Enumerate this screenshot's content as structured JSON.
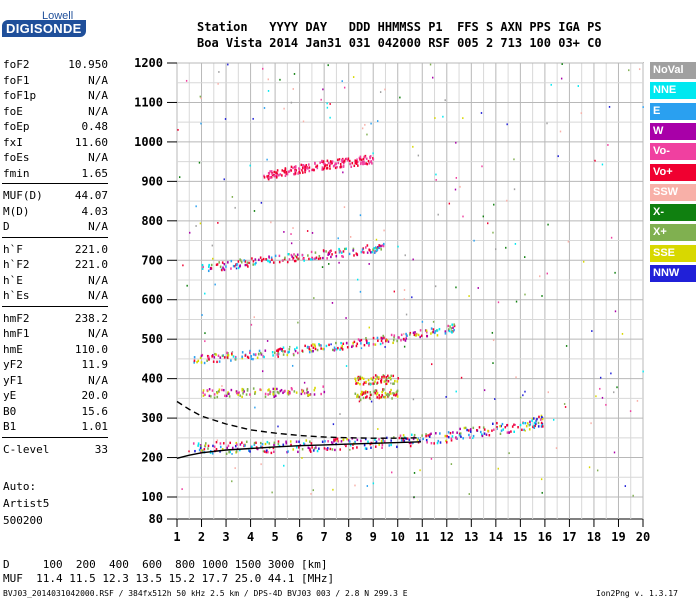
{
  "logo": {
    "top": "Lowell",
    "main": "DIGISONDE"
  },
  "header": {
    "line1": "Station   YYYY DAY   DDD HHMMSS P1  FFS S AXN PPS IGA PS",
    "line2": "Boa Vista 2014 Jan31 031 042000 RSF 005 2 713 100 03+ C0"
  },
  "parameters": [
    [
      {
        "label": "foF2",
        "value": "10.950"
      },
      {
        "label": "foF1",
        "value": "N/A"
      },
      {
        "label": "foF1p",
        "value": "N/A"
      },
      {
        "label": "foE",
        "value": "N/A"
      },
      {
        "label": "foEp",
        "value": "0.48"
      },
      {
        "label": "fxI",
        "value": "11.60"
      },
      {
        "label": "foEs",
        "value": "N/A"
      },
      {
        "label": "fmin",
        "value": "1.65"
      }
    ],
    [
      {
        "label": "MUF(D)",
        "value": "44.07"
      },
      {
        "label": "M(D)",
        "value": "4.03"
      },
      {
        "label": "D",
        "value": "N/A"
      }
    ],
    [
      {
        "label": "h`F",
        "value": "221.0"
      },
      {
        "label": "h`F2",
        "value": "221.0"
      },
      {
        "label": "h`E",
        "value": "N/A"
      },
      {
        "label": "h`Es",
        "value": "N/A"
      }
    ],
    [
      {
        "label": "hmF2",
        "value": "238.2"
      },
      {
        "label": "hmF1",
        "value": "N/A"
      },
      {
        "label": "hmE",
        "value": "110.0"
      },
      {
        "label": "yF2",
        "value": "11.9"
      },
      {
        "label": "yF1",
        "value": "N/A"
      },
      {
        "label": "yE",
        "value": "20.0"
      },
      {
        "label": "B0",
        "value": "15.6"
      },
      {
        "label": "B1",
        "value": "1.01"
      }
    ],
    [
      {
        "label": "C-level",
        "value": "33"
      }
    ]
  ],
  "extra_text": [
    "Auto:",
    "Artist5",
    "500200"
  ],
  "legend": [
    {
      "label": "NoVal",
      "color": "#a0a0a0",
      "text_color": "#ffffff"
    },
    {
      "label": "NNE",
      "color": "#00e8f0",
      "text_color": "#ffffff"
    },
    {
      "label": "E",
      "color": "#2aa0f0",
      "text_color": "#ffffff"
    },
    {
      "label": "W",
      "color": "#a800a8",
      "text_color": "#ffffff"
    },
    {
      "label": "Vo-",
      "color": "#f040a0",
      "text_color": "#ffffff"
    },
    {
      "label": "Vo+",
      "color": "#f00030",
      "text_color": "#ffffff"
    },
    {
      "label": "SSW",
      "color": "#f8b0a8",
      "text_color": "#ffffff"
    },
    {
      "label": "X-",
      "color": "#108010",
      "text_color": "#ffffff"
    },
    {
      "label": "X+",
      "color": "#80b050",
      "text_color": "#ffffff"
    },
    {
      "label": "SSE",
      "color": "#d8d800",
      "text_color": "#ffffff"
    },
    {
      "label": "NNW",
      "color": "#2020d8",
      "text_color": "#ffffff"
    }
  ],
  "footer": {
    "d_row": "D     100  200  400  600  800 1000 1500 3000 [km]",
    "muf_row": "MUF  11.4 11.5 12.3 13.5 15.2 17.7 25.0 44.1 [MHz]",
    "file_line": "BVJ03_2014031042000.RSF / 384fx512h 50 kHz 2.5 km / DPS-4D BVJ03 003 / 2.8 N 299.3 E",
    "version": "Ion2Png v. 1.3.17"
  },
  "chart_data": {
    "type": "scatter",
    "xlabel": "",
    "ylabel": "",
    "xlim": [
      1,
      20
    ],
    "ylim": [
      80,
      1200
    ],
    "x_ticks": [
      1,
      2,
      3,
      4,
      5,
      6,
      7,
      8,
      9,
      10,
      11,
      12,
      13,
      14,
      15,
      16,
      17,
      18,
      19,
      20
    ],
    "y_ticks": [
      80,
      100,
      200,
      300,
      400,
      500,
      600,
      700,
      800,
      900,
      1000,
      1100,
      1200
    ],
    "grid": true,
    "traces": [
      {
        "name": "",
        "x": [
          1.65,
          2.5,
          3.5,
          4.5,
          5.5,
          6.5,
          7.5,
          8.5,
          9.5,
          10.5,
          11.5,
          12.5,
          13.5,
          14.5,
          15.5,
          15.9
        ],
        "y": [
          226,
          227,
          228,
          229,
          231,
          233,
          236,
          239,
          242,
          246,
          252,
          262,
          272,
          280,
          290,
          296
        ]
      },
      {
        "name": "",
        "x": [
          1.65,
          2.5,
          3.5,
          4.5,
          5.5,
          6.5,
          7.5,
          8.5,
          9.5,
          10.5,
          11.5,
          12.3
        ],
        "y": [
          450,
          455,
          460,
          466,
          472,
          479,
          486,
          494,
          502,
          511,
          522,
          532
        ]
      },
      {
        "name": "",
        "x": [
          1.9,
          3.0,
          4.0,
          5.0,
          6.0,
          7.0,
          8.0,
          9.0,
          9.4
        ],
        "y": [
          680,
          690,
          698,
          705,
          712,
          718,
          724,
          732,
          740
        ]
      },
      {
        "name": "",
        "x": [
          2.0,
          3.0,
          4.0,
          5.0,
          6.0,
          7.0
        ],
        "y": [
          365,
          366,
          367,
          368,
          369,
          372
        ]
      },
      {
        "name": "",
        "x": [
          8.2,
          8.8,
          9.4,
          10.0
        ],
        "y": [
          358,
          362,
          366,
          362
        ]
      },
      {
        "name": "",
        "x": [
          8.2,
          8.8,
          9.4,
          10.0
        ],
        "y": [
          398,
          400,
          401,
          399
        ]
      },
      {
        "name": "",
        "x": [
          4.5,
          5.0,
          5.5,
          6.0,
          6.5,
          7.0,
          7.5,
          8.0,
          8.5,
          9.0
        ],
        "y": [
          915,
          922,
          928,
          935,
          940,
          945,
          948,
          950,
          955,
          960
        ]
      }
    ],
    "curves": [
      {
        "name": "",
        "style": "solid",
        "x": [
          1.0,
          1.5,
          2.0,
          3.0,
          4.0,
          5.0,
          6.0,
          7.0,
          8.0,
          9.0,
          10.0,
          10.95
        ],
        "y": [
          198,
          206,
          212,
          219,
          223,
          227,
          230,
          232,
          234,
          236,
          238,
          240
        ]
      },
      {
        "name": "",
        "style": "dashed",
        "x": [
          1.0,
          1.5,
          2.0,
          3.0,
          4.0,
          5.0,
          6.0,
          7.0,
          8.0,
          9.0,
          10.0,
          10.95
        ],
        "y": [
          342,
          322,
          305,
          285,
          270,
          262,
          256,
          252,
          250,
          249,
          249,
          250
        ]
      }
    ]
  }
}
